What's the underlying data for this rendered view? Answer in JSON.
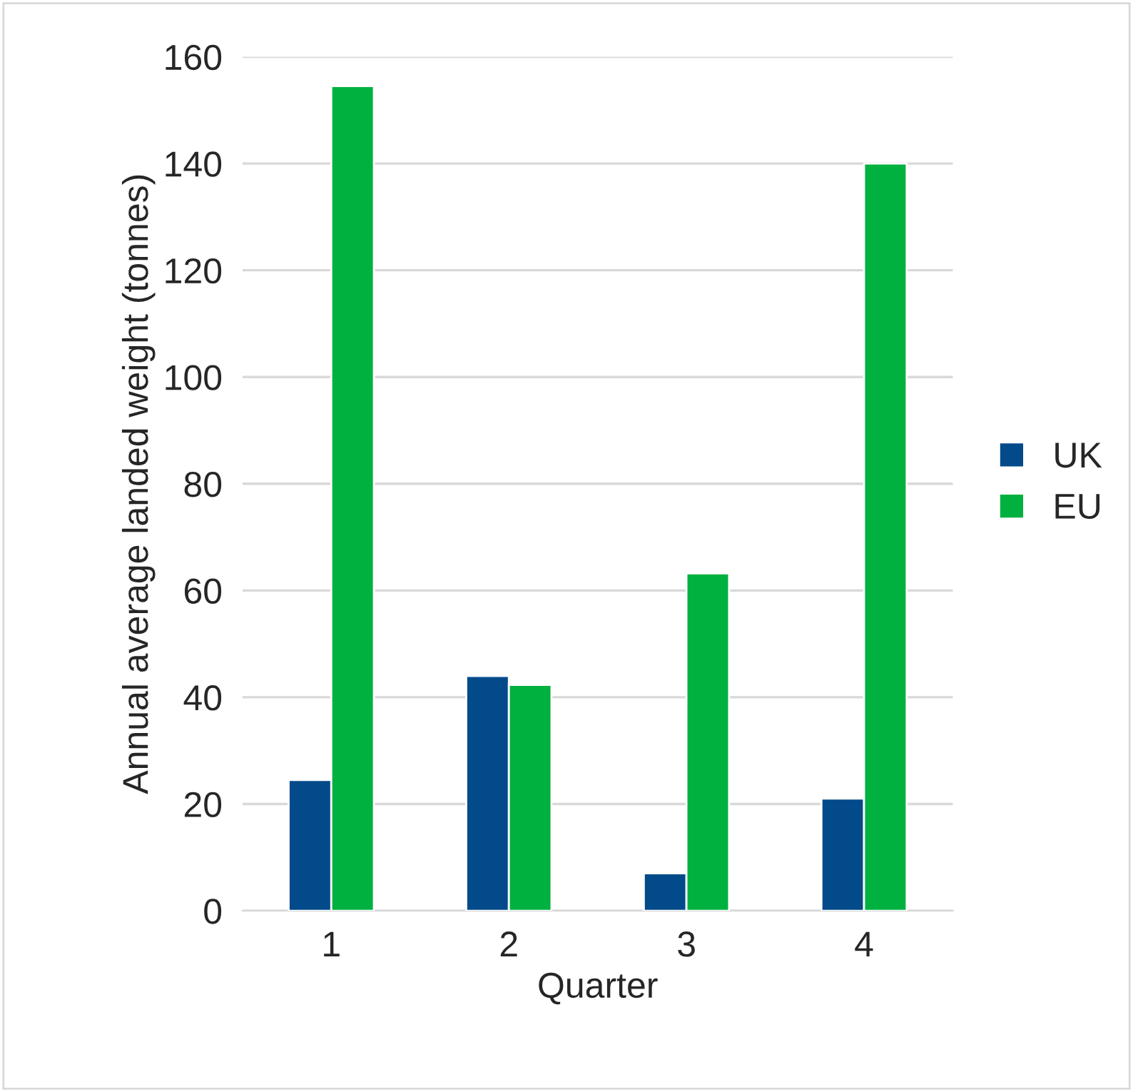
{
  "chart_data": {
    "type": "bar",
    "xlabel": "Quarter",
    "ylabel": "Annual average landed weight (tonnes)",
    "categories": [
      "1",
      "2",
      "3",
      "4"
    ],
    "series": [
      {
        "name": "UK",
        "color": "#034a8a",
        "values": [
          24.5,
          44,
          7,
          21
        ]
      },
      {
        "name": "EU",
        "color": "#00b140",
        "values": [
          154.5,
          42.3,
          63.2,
          140
        ]
      }
    ],
    "ylim": [
      0,
      160
    ],
    "yticks": [
      0,
      20,
      40,
      60,
      80,
      100,
      120,
      140,
      160
    ],
    "grid": "y",
    "legend": "right"
  }
}
